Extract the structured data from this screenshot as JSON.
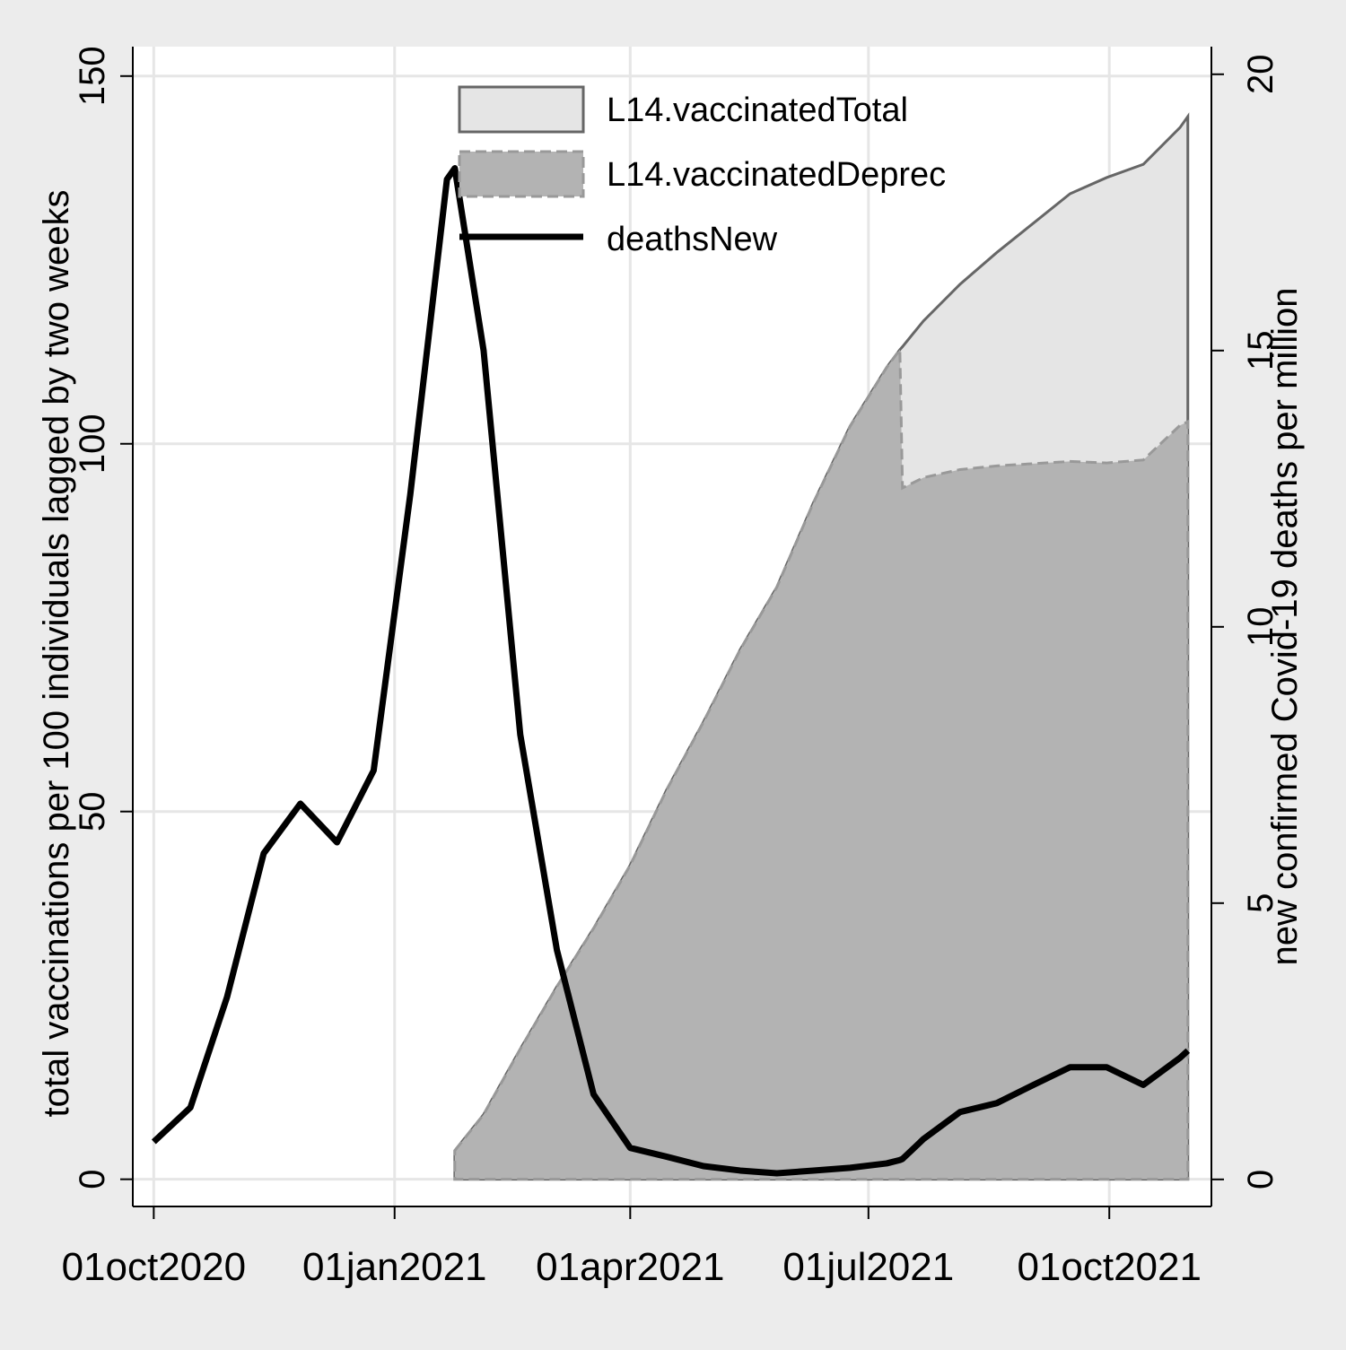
{
  "chart_data": {
    "type": "line",
    "x": [
      "2020-10-01",
      "2020-10-15",
      "2020-10-29",
      "2020-11-12",
      "2020-11-26",
      "2020-12-10",
      "2020-12-24",
      "2021-01-07",
      "2021-01-21",
      "2021-01-24",
      "2021-02-04",
      "2021-02-18",
      "2021-03-04",
      "2021-03-18",
      "2021-04-01",
      "2021-04-15",
      "2021-04-29",
      "2021-05-13",
      "2021-05-27",
      "2021-06-10",
      "2021-06-24",
      "2021-07-08",
      "2021-07-13",
      "2021-07-14",
      "2021-07-22",
      "2021-08-05",
      "2021-08-19",
      "2021-09-02",
      "2021-09-16",
      "2021-09-30",
      "2021-10-14",
      "2021-10-28",
      "2021-10-31"
    ],
    "series": [
      {
        "name": "L14.vaccinatedTotal",
        "type": "area",
        "color": "#e5e5e5",
        "axis": "y",
        "values": [
          null,
          null,
          null,
          null,
          null,
          null,
          null,
          null,
          null,
          3.9,
          8.8,
          17.7,
          26.2,
          34.1,
          42.7,
          53,
          62.2,
          72,
          80.5,
          92,
          102.4,
          110.4,
          112.8,
          113.2,
          116.7,
          121.7,
          126,
          130,
          134,
          136.2,
          138,
          143,
          144.5
        ]
      },
      {
        "name": "L14.vaccinatedDeprec",
        "type": "area",
        "color": "#b3b3b3",
        "axis": "y",
        "values": [
          null,
          null,
          null,
          null,
          null,
          null,
          null,
          null,
          null,
          3.9,
          8.8,
          17.7,
          26.2,
          34.1,
          42.7,
          53,
          62.2,
          72,
          80.5,
          92,
          102.4,
          110.4,
          112.8,
          94,
          95.4,
          96.5,
          97,
          97.3,
          97.6,
          97.4,
          97.8,
          102.5,
          103
        ]
      },
      {
        "name": "deathsNew",
        "type": "line",
        "color": "#000000",
        "axis": "y2",
        "values": [
          0.68,
          1.3,
          3.3,
          5.9,
          6.8,
          6.1,
          7.4,
          12.4,
          18.1,
          18.3,
          15.0,
          8.05,
          4.15,
          1.54,
          0.57,
          0.41,
          0.24,
          0.16,
          0.11,
          0.16,
          0.21,
          0.29,
          0.35,
          0.37,
          0.73,
          1.22,
          1.38,
          1.71,
          2.03,
          2.03,
          1.71,
          2.2,
          2.33
        ]
      }
    ],
    "xlim": [
      "2020-09-23",
      "2021-11-09"
    ],
    "xticks": [
      {
        "value": "2020-10-01",
        "label": "01oct2020"
      },
      {
        "value": "2021-01-01",
        "label": "01jan2021"
      },
      {
        "value": "2021-04-01",
        "label": "01apr2021"
      },
      {
        "value": "2021-07-01",
        "label": "01jul2021"
      },
      {
        "value": "2021-10-01",
        "label": "01oct2021"
      }
    ],
    "ylim": [
      -3.7,
      154
    ],
    "yticks": [
      0,
      50,
      100,
      150
    ],
    "y2lim": [
      -0.49,
      20.5
    ],
    "y2ticks": [
      0,
      5,
      10,
      15,
      20
    ],
    "ylabel": "total vaccinations per 100 individuals lagged by two weeks",
    "y2label": "new confirmed Covid-19 deaths per million",
    "grid": true,
    "legend": "top"
  }
}
